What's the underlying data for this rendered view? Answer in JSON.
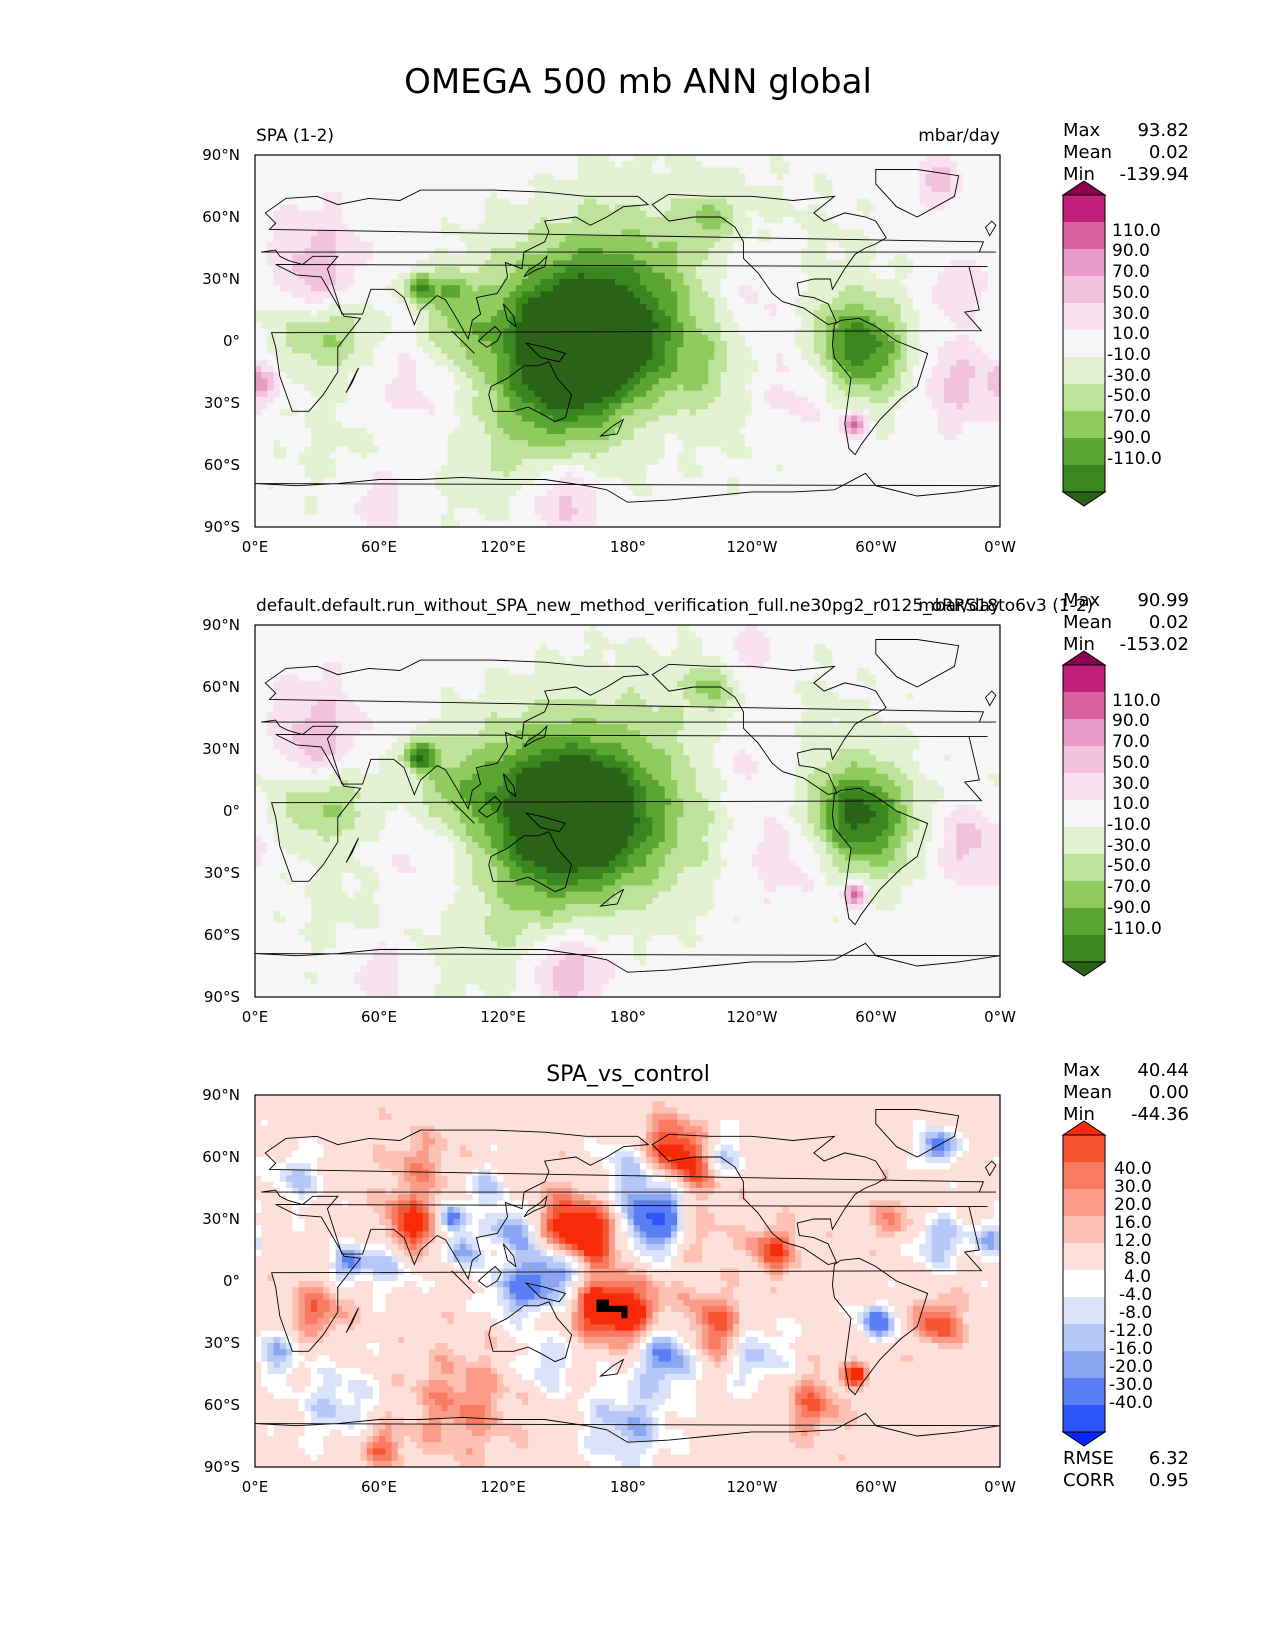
{
  "figure": {
    "title": "OMEGA 500 mb ANN global"
  },
  "axes": {
    "lat_ticks": [
      "90°N",
      "60°N",
      "30°N",
      "0°",
      "30°S",
      "60°S",
      "90°S"
    ],
    "lon_ticks": [
      "0°E",
      "60°E",
      "120°E",
      "180°",
      "120°W",
      "60°W",
      "0°W"
    ]
  },
  "colors": {
    "abs_levels": [
      "#2a6318",
      "#3a8720",
      "#5ba532",
      "#8fcb5e",
      "#bde39b",
      "#e3f2d2",
      "#f6f6f6",
      "#f9e2ef",
      "#f2c2dd",
      "#e89cca",
      "#d8619f",
      "#c0207a",
      "#8c0251"
    ],
    "diff_levels": [
      "#0a24fe",
      "#2d55fb",
      "#5a7ff5",
      "#8aa6f2",
      "#b4c7f6",
      "#dbe3fb",
      "#ffffff",
      "#fde0da",
      "#fcc1b3",
      "#fb9c88",
      "#f87a62",
      "#f55533",
      "#f92a0a"
    ],
    "coast": "#000000"
  },
  "panels": [
    {
      "left_title": "SPA (1-2)",
      "right_title": "mbar/day",
      "center_title": "",
      "stats": {
        "labels": [
          "Max",
          "Mean",
          "Min"
        ],
        "values": [
          "93.82",
          "0.02",
          "-139.94"
        ]
      },
      "colorbar": {
        "labels": [
          "110.0",
          "90.0",
          "70.0",
          "50.0",
          "30.0",
          "10.0",
          "-10.0",
          "-30.0",
          "-50.0",
          "-70.0",
          "-90.0",
          "-110.0"
        ]
      },
      "footer": null
    },
    {
      "left_title": "default.default.run_without_SPA_new_method_verification_full.ne30pg2_r0125_oRRS18to6v3 (1-2)",
      "right_title": "mbar/day",
      "center_title": "",
      "stats": {
        "labels": [
          "Max",
          "Mean",
          "Min"
        ],
        "values": [
          "90.99",
          "0.02",
          "-153.02"
        ]
      },
      "colorbar": {
        "labels": [
          "110.0",
          "90.0",
          "70.0",
          "50.0",
          "30.0",
          "10.0",
          "-10.0",
          "-30.0",
          "-50.0",
          "-70.0",
          "-90.0",
          "-110.0"
        ]
      },
      "footer": null
    },
    {
      "left_title": "",
      "right_title": "",
      "center_title": "SPA_vs_control",
      "stats": {
        "labels": [
          "Max",
          "Mean",
          "Min"
        ],
        "values": [
          "40.44",
          "0.00",
          "-44.36"
        ]
      },
      "colorbar": {
        "labels": [
          "40.0",
          "30.0",
          "20.0",
          "16.0",
          "12.0",
          "8.0",
          "4.0",
          "-4.0",
          "-8.0",
          "-12.0",
          "-16.0",
          "-20.0",
          "-30.0",
          "-40.0"
        ]
      },
      "footer": {
        "labels": [
          "RMSE",
          "CORR"
        ],
        "values": [
          "6.32",
          "0.95"
        ]
      }
    }
  ],
  "chart_data": [
    {
      "type": "heatmap",
      "title": "SPA (1-2)",
      "units": "mbar/day",
      "x_range": [
        0,
        360
      ],
      "y_range": [
        -90,
        90
      ],
      "levels": [
        -110,
        -90,
        -70,
        -50,
        -30,
        -10,
        10,
        30,
        50,
        70,
        90,
        110
      ],
      "max": 93.82,
      "mean": 0.02,
      "min": -139.94,
      "features": [
        {
          "lon": 160,
          "lat": -2,
          "v": -120,
          "r": 22
        },
        {
          "lon": 140,
          "lat": 0,
          "v": -70,
          "r": 32
        },
        {
          "lon": 185,
          "lat": 8,
          "v": -30,
          "r": 30
        },
        {
          "lon": 240,
          "lat": 8,
          "v": -30,
          "r": 45
        },
        {
          "lon": 290,
          "lat": 0,
          "v": -70,
          "r": 14
        },
        {
          "lon": 298,
          "lat": -12,
          "v": -40,
          "r": 16
        },
        {
          "lon": 80,
          "lat": 26,
          "v": -90,
          "r": 5
        },
        {
          "lon": 95,
          "lat": 25,
          "v": -50,
          "r": 6
        },
        {
          "lon": 40,
          "lat": 5,
          "v": -40,
          "r": 14
        },
        {
          "lon": 20,
          "lat": 5,
          "v": -25,
          "r": 16
        },
        {
          "lon": 95,
          "lat": 5,
          "v": -35,
          "r": 12
        },
        {
          "lon": 140,
          "lat": -50,
          "v": -30,
          "r": 28
        },
        {
          "lon": 60,
          "lat": -50,
          "v": -25,
          "r": 30
        },
        {
          "lon": 220,
          "lat": 60,
          "v": -40,
          "r": 8
        },
        {
          "lon": 180,
          "lat": 45,
          "v": -20,
          "r": 30
        },
        {
          "lon": 210,
          "lat": -20,
          "v": -25,
          "r": 18
        },
        {
          "lon": 240,
          "lat": 25,
          "v": 45,
          "r": 18
        },
        {
          "lon": 30,
          "lat": 25,
          "v": 40,
          "r": 12
        },
        {
          "lon": 80,
          "lat": -25,
          "v": 40,
          "r": 22
        },
        {
          "lon": 260,
          "lat": -20,
          "v": 40,
          "r": 20
        },
        {
          "lon": 340,
          "lat": -20,
          "v": 40,
          "r": 15
        },
        {
          "lon": 4,
          "lat": -20,
          "v": 50,
          "r": 6
        },
        {
          "lon": 150,
          "lat": -75,
          "v": 55,
          "r": 14
        },
        {
          "lon": 60,
          "lat": -76,
          "v": 35,
          "r": 14
        },
        {
          "lon": 195,
          "lat": -30,
          "v": 25,
          "r": 20
        },
        {
          "lon": 290,
          "lat": -40,
          "v": 90,
          "r": 4
        },
        {
          "lon": 330,
          "lat": 77,
          "v": 40,
          "r": 8
        },
        {
          "lon": 30,
          "lat": 45,
          "v": 30,
          "r": 15
        },
        {
          "lon": 340,
          "lat": 25,
          "v": 30,
          "r": 10
        }
      ]
    },
    {
      "type": "heatmap",
      "title": "default.default.run_without_SPA_new_method_verification_full.ne30pg2_r0125_oRRS18to6v3 (1-2)",
      "units": "mbar/day",
      "x_range": [
        0,
        360
      ],
      "y_range": [
        -90,
        90
      ],
      "levels": [
        -110,
        -90,
        -70,
        -50,
        -30,
        -10,
        10,
        30,
        50,
        70,
        90,
        110
      ],
      "max": 90.99,
      "mean": 0.02,
      "min": -153.02,
      "features": [
        {
          "lon": 155,
          "lat": -2,
          "v": -120,
          "r": 22
        },
        {
          "lon": 130,
          "lat": 2,
          "v": -70,
          "r": 30
        },
        {
          "lon": 185,
          "lat": -10,
          "v": -35,
          "r": 25
        },
        {
          "lon": 250,
          "lat": 8,
          "v": -30,
          "r": 42
        },
        {
          "lon": 290,
          "lat": 0,
          "v": -70,
          "r": 15
        },
        {
          "lon": 298,
          "lat": -10,
          "v": -45,
          "r": 18
        },
        {
          "lon": 80,
          "lat": 27,
          "v": -100,
          "r": 5
        },
        {
          "lon": 40,
          "lat": 5,
          "v": -40,
          "r": 15
        },
        {
          "lon": 20,
          "lat": 5,
          "v": -25,
          "r": 16
        },
        {
          "lon": 95,
          "lat": 10,
          "v": -35,
          "r": 14
        },
        {
          "lon": 130,
          "lat": -55,
          "v": -30,
          "r": 28
        },
        {
          "lon": 60,
          "lat": -52,
          "v": -25,
          "r": 28
        },
        {
          "lon": 220,
          "lat": 60,
          "v": -45,
          "r": 8
        },
        {
          "lon": 180,
          "lat": 40,
          "v": -20,
          "r": 30
        },
        {
          "lon": 240,
          "lat": 25,
          "v": 40,
          "r": 18
        },
        {
          "lon": 30,
          "lat": 25,
          "v": 40,
          "r": 12
        },
        {
          "lon": 85,
          "lat": -25,
          "v": 40,
          "r": 22
        },
        {
          "lon": 255,
          "lat": -20,
          "v": 45,
          "r": 20
        },
        {
          "lon": 345,
          "lat": -15,
          "v": 40,
          "r": 14
        },
        {
          "lon": 150,
          "lat": -76,
          "v": 60,
          "r": 14
        },
        {
          "lon": 60,
          "lat": -76,
          "v": 35,
          "r": 14
        },
        {
          "lon": 290,
          "lat": -40,
          "v": 90,
          "r": 4
        },
        {
          "lon": 240,
          "lat": 77,
          "v": 30,
          "r": 10
        },
        {
          "lon": 30,
          "lat": 45,
          "v": 30,
          "r": 15
        }
      ]
    },
    {
      "type": "heatmap",
      "title": "SPA_vs_control",
      "units": "mbar/day",
      "x_range": [
        0,
        360
      ],
      "y_range": [
        -90,
        90
      ],
      "levels": [
        -40,
        -30,
        -20,
        -16,
        -12,
        -8,
        -4,
        4,
        8,
        12,
        16,
        20,
        30,
        40
      ],
      "max": 40.44,
      "mean": 0.0,
      "min": -44.36,
      "rmse": 6.32,
      "corr": 0.95,
      "features": [
        {
          "lon": 195,
          "lat": 30,
          "v": -35,
          "r": 12
        },
        {
          "lon": 75,
          "lat": 25,
          "v": 25,
          "r": 10
        },
        {
          "lon": 150,
          "lat": 25,
          "v": 25,
          "r": 12
        },
        {
          "lon": 165,
          "lat": 20,
          "v": 20,
          "r": 10
        },
        {
          "lon": 125,
          "lat": 25,
          "v": -20,
          "r": 8
        },
        {
          "lon": 95,
          "lat": 30,
          "v": -25,
          "r": 5
        },
        {
          "lon": 45,
          "lat": 8,
          "v": -20,
          "r": 6
        },
        {
          "lon": 65,
          "lat": 10,
          "v": -15,
          "r": 10
        },
        {
          "lon": 100,
          "lat": 15,
          "v": -20,
          "r": 6
        },
        {
          "lon": 145,
          "lat": 5,
          "v": -25,
          "r": 12
        },
        {
          "lon": 125,
          "lat": -5,
          "v": -15,
          "r": 10
        },
        {
          "lon": 165,
          "lat": -12,
          "v": 25,
          "r": 10
        },
        {
          "lon": 185,
          "lat": -18,
          "v": 25,
          "r": 12
        },
        {
          "lon": 220,
          "lat": -25,
          "v": 25,
          "r": 12
        },
        {
          "lon": 200,
          "lat": -32,
          "v": -30,
          "r": 12
        },
        {
          "lon": 240,
          "lat": -35,
          "v": -15,
          "r": 12
        },
        {
          "lon": 250,
          "lat": 15,
          "v": 20,
          "r": 8
        },
        {
          "lon": 215,
          "lat": 55,
          "v": 20,
          "r": 10
        },
        {
          "lon": 200,
          "lat": 65,
          "v": 20,
          "r": 10
        },
        {
          "lon": 225,
          "lat": 60,
          "v": -20,
          "r": 8
        },
        {
          "lon": 210,
          "lat": 25,
          "v": 15,
          "r": 10
        },
        {
          "lon": 300,
          "lat": -20,
          "v": -25,
          "r": 6
        },
        {
          "lon": 290,
          "lat": -45,
          "v": 25,
          "r": 4
        },
        {
          "lon": 330,
          "lat": -20,
          "v": 20,
          "r": 8
        },
        {
          "lon": 30,
          "lat": -15,
          "v": 15,
          "r": 10
        },
        {
          "lon": 10,
          "lat": -35,
          "v": -15,
          "r": 8
        },
        {
          "lon": 330,
          "lat": 20,
          "v": -15,
          "r": 10
        },
        {
          "lon": 330,
          "lat": 65,
          "v": -25,
          "r": 6
        },
        {
          "lon": 60,
          "lat": -80,
          "v": 15,
          "r": 8
        },
        {
          "lon": 180,
          "lat": -70,
          "v": -15,
          "r": 15
        },
        {
          "lon": 100,
          "lat": -60,
          "v": 12,
          "r": 18
        },
        {
          "lon": 20,
          "lat": 50,
          "v": -12,
          "r": 10
        },
        {
          "lon": 355,
          "lat": 20,
          "v": -15,
          "r": 6
        },
        {
          "lon": 270,
          "lat": -60,
          "v": 15,
          "r": 10
        },
        {
          "lon": 80,
          "lat": 55,
          "v": 10,
          "r": 12
        },
        {
          "lon": 110,
          "lat": 45,
          "v": -12,
          "r": 8
        },
        {
          "lon": 310,
          "lat": 30,
          "v": 12,
          "r": 8
        },
        {
          "lon": 180,
          "lat": 55,
          "v": -12,
          "r": 10
        },
        {
          "lon": 140,
          "lat": -40,
          "v": -12,
          "r": 10
        },
        {
          "lon": 40,
          "lat": -60,
          "v": -12,
          "r": 14
        }
      ]
    }
  ]
}
